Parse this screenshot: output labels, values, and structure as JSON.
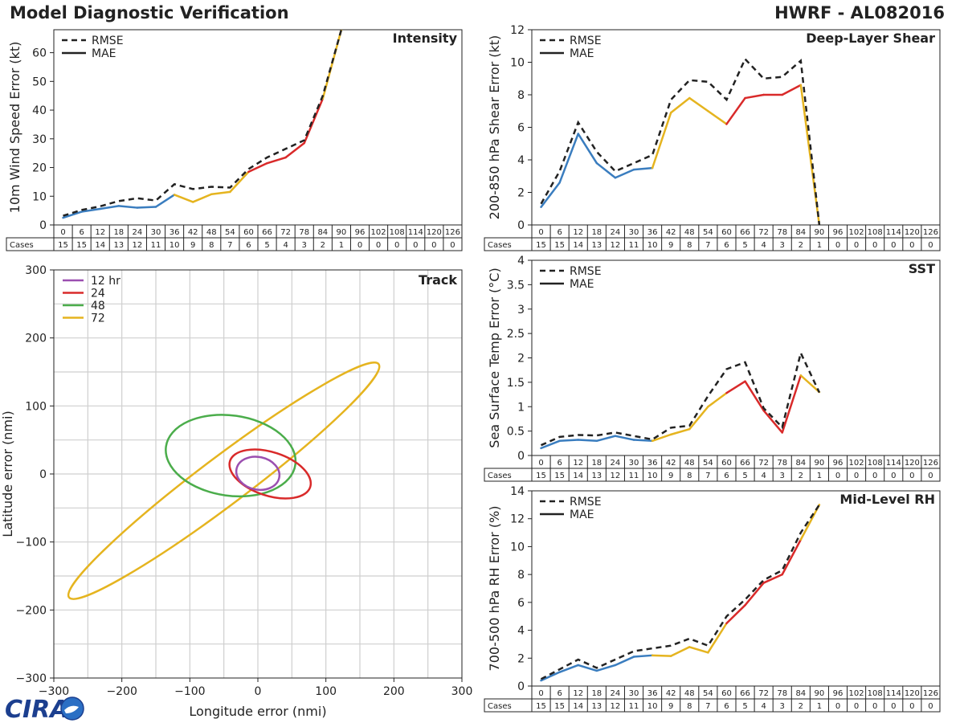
{
  "header": {
    "title": "Model Diagnostic Verification",
    "storm": "HWRF - AL082016"
  },
  "colors": {
    "blue": "#3a7dbf",
    "yellow": "#e5b41f",
    "red": "#d92a2a",
    "green": "#4bad4b",
    "purple": "#9b4fb0",
    "black": "#222222",
    "grid": "#cfcfcf"
  },
  "legend_labels": {
    "rmse": "RMSE",
    "mae": "MAE"
  },
  "table": {
    "hours": [
      0,
      6,
      12,
      18,
      24,
      30,
      36,
      42,
      48,
      54,
      60,
      66,
      72,
      78,
      84,
      90,
      96,
      102,
      108,
      114,
      120,
      126
    ],
    "cases_label": "Cases",
    "cases": [
      15,
      15,
      14,
      13,
      12,
      11,
      10,
      9,
      8,
      7,
      6,
      5,
      4,
      3,
      2,
      1,
      0,
      0,
      0,
      0,
      0,
      0
    ]
  },
  "logo": {
    "text": "CIRA"
  },
  "chart_data": [
    {
      "id": "intensity",
      "type": "line",
      "title": "Intensity",
      "ylabel": "10m Wind Speed Error (kt)",
      "ylim": [
        0,
        68
      ],
      "yticks": [
        0,
        10,
        20,
        30,
        40,
        50,
        60
      ],
      "x": [
        0,
        6,
        12,
        18,
        24,
        30,
        36,
        42,
        48,
        54,
        60,
        66,
        72,
        78,
        84,
        90
      ],
      "series": [
        {
          "name": "RMSE",
          "values": [
            3.2,
            5.2,
            6.5,
            8.3,
            9.3,
            8.5,
            14.2,
            12.5,
            13.3,
            13.0,
            19.5,
            23.5,
            26.5,
            29.5,
            45,
            68
          ]
        },
        {
          "name": "MAE",
          "values": [
            2.5,
            4.6,
            5.6,
            6.6,
            6.0,
            6.3,
            10.5,
            8.0,
            10.7,
            11.5,
            18.5,
            21.5,
            23.5,
            28.5,
            44,
            68
          ]
        }
      ]
    },
    {
      "id": "shear",
      "type": "line",
      "title": "Deep-Layer Shear",
      "ylabel": "200-850 hPa Shear Error (kt)",
      "ylim": [
        0,
        12
      ],
      "yticks": [
        0,
        2,
        4,
        6,
        8,
        10,
        12
      ],
      "x": [
        0,
        6,
        12,
        18,
        24,
        30,
        36,
        42,
        48,
        54,
        60,
        66,
        72,
        78,
        84,
        90
      ],
      "series": [
        {
          "name": "RMSE",
          "values": [
            1.3,
            3.3,
            6.3,
            4.5,
            3.3,
            3.8,
            4.3,
            7.7,
            8.9,
            8.8,
            7.7,
            10.2,
            9.0,
            9.1,
            10.1,
            0
          ]
        },
        {
          "name": "MAE",
          "values": [
            1.1,
            2.6,
            5.6,
            3.8,
            2.9,
            3.4,
            3.5,
            6.9,
            7.8,
            7.0,
            6.2,
            7.8,
            8.0,
            8.0,
            8.6,
            0
          ]
        }
      ]
    },
    {
      "id": "track",
      "type": "scatter",
      "title": "Track",
      "xlabel": "Longitude error (nmi)",
      "ylabel": "Latitude error (nmi)",
      "xlim": [
        -300,
        300
      ],
      "ylim": [
        -300,
        300
      ],
      "xticks": [
        -300,
        -200,
        -100,
        0,
        100,
        200,
        300
      ],
      "yticks": [
        -300,
        -200,
        -100,
        0,
        100,
        200,
        300
      ],
      "ellipses": [
        {
          "name": "12 hr",
          "color": "purple",
          "cx": 0,
          "cy": 1,
          "rx": 32,
          "ry": 24,
          "angle": -12
        },
        {
          "name": "24",
          "color": "red",
          "cx": 18,
          "cy": 0,
          "rx": 62,
          "ry": 32,
          "angle": -18
        },
        {
          "name": "48",
          "color": "green",
          "cx": -40,
          "cy": 27,
          "rx": 96,
          "ry": 59,
          "angle": -8
        },
        {
          "name": "72",
          "color": "yellow",
          "cx": -50,
          "cy": -10,
          "rx": 285,
          "ry": 35,
          "angle": 37
        }
      ]
    },
    {
      "id": "sst",
      "type": "line",
      "title": "SST",
      "ylabel": "Sea Surface Temp Error (°C)",
      "ylim": [
        0,
        4
      ],
      "yticks": [
        0,
        0.5,
        1,
        1.5,
        2,
        2.5,
        3,
        3.5,
        4
      ],
      "x": [
        0,
        6,
        12,
        18,
        24,
        30,
        36,
        42,
        48,
        54,
        60,
        66,
        72,
        78,
        84,
        90
      ],
      "series": [
        {
          "name": "RMSE",
          "values": [
            0.21,
            0.38,
            0.42,
            0.41,
            0.47,
            0.4,
            0.33,
            0.57,
            0.61,
            1.22,
            1.77,
            1.91,
            0.97,
            0.58,
            2.1,
            1.29
          ]
        },
        {
          "name": "MAE",
          "values": [
            0.15,
            0.3,
            0.32,
            0.3,
            0.4,
            0.32,
            0.3,
            0.43,
            0.54,
            1.0,
            1.28,
            1.52,
            0.92,
            0.47,
            1.64,
            1.3
          ]
        }
      ]
    },
    {
      "id": "rh",
      "type": "line",
      "title": "Mid-Level RH",
      "ylabel": "700-500 hPa RH Error (%)",
      "ylim": [
        0,
        14
      ],
      "yticks": [
        0,
        2,
        4,
        6,
        8,
        10,
        12,
        14
      ],
      "x": [
        0,
        6,
        12,
        18,
        24,
        30,
        36,
        42,
        48,
        54,
        60,
        66,
        72,
        78,
        84,
        90
      ],
      "series": [
        {
          "name": "RMSE",
          "values": [
            0.5,
            1.2,
            1.9,
            1.3,
            1.9,
            2.5,
            2.7,
            2.9,
            3.4,
            2.9,
            5.0,
            6.2,
            7.6,
            8.3,
            11.0,
            13.0
          ]
        },
        {
          "name": "MAE",
          "values": [
            0.4,
            1.0,
            1.5,
            1.1,
            1.5,
            2.1,
            2.2,
            2.15,
            2.8,
            2.4,
            4.5,
            5.8,
            7.4,
            8.0,
            10.5,
            13.0
          ]
        }
      ]
    }
  ]
}
